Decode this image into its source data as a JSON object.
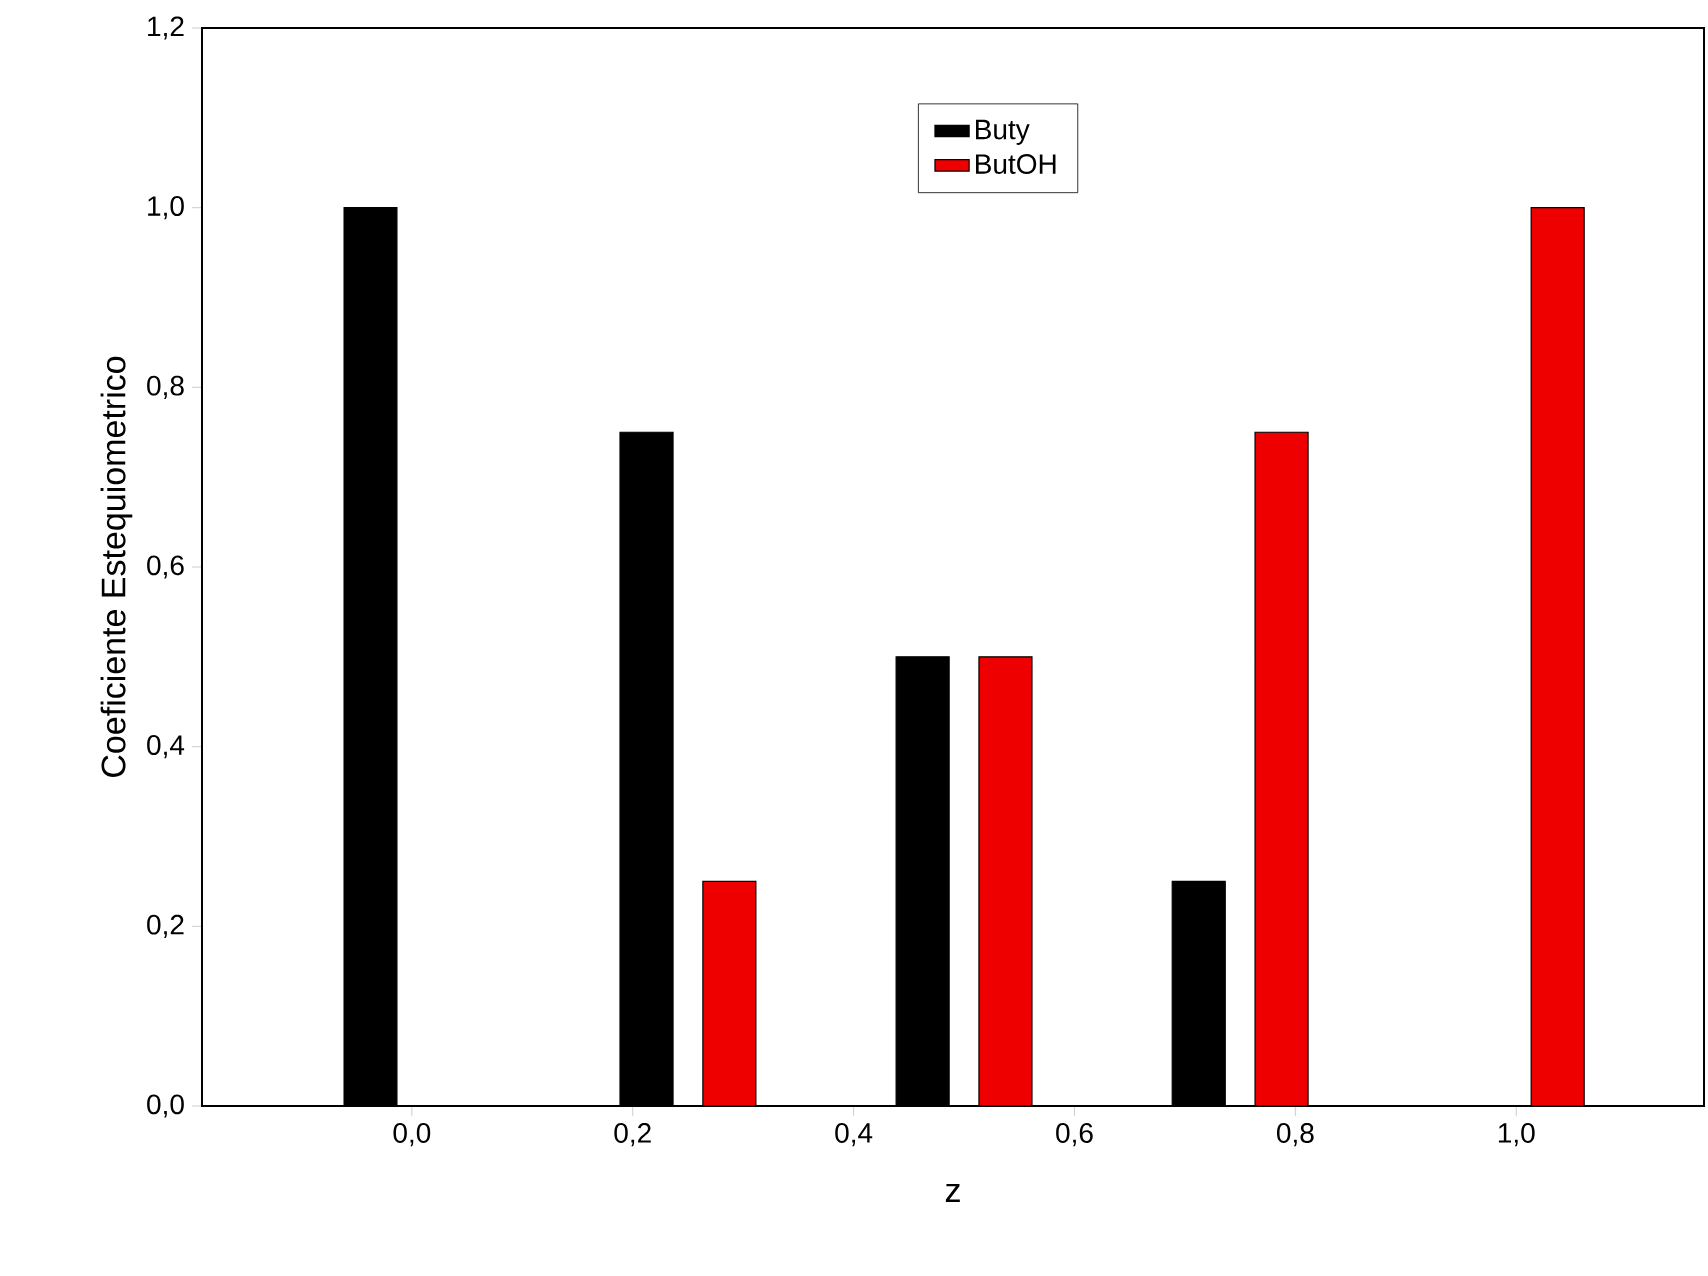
{
  "chart_data": {
    "type": "bar",
    "xlabel": "z",
    "ylabel": "Coeficiente Estequiometrico",
    "x": [
      0,
      0.25,
      0.5,
      0.75,
      1.0
    ],
    "series": [
      {
        "name": "Buty",
        "color": "#000000",
        "values": [
          1.0,
          0.75,
          0.5,
          0.25,
          null
        ]
      },
      {
        "name": "ButOH",
        "color": "#ee0000",
        "values": [
          null,
          0.25,
          0.5,
          0.75,
          1.0
        ]
      }
    ],
    "xlim": [
      -0.19,
      1.17
    ],
    "xticks": [
      {
        "value": 0,
        "label": "0,0"
      },
      {
        "value": 0.2,
        "label": "0,2"
      },
      {
        "value": 0.4,
        "label": "0,4"
      },
      {
        "value": 0.6,
        "label": "0,6"
      },
      {
        "value": 0.8,
        "label": "0,8"
      },
      {
        "value": 1.0,
        "label": "1,0"
      }
    ],
    "ylim": [
      0,
      1.2
    ],
    "yticks": [
      {
        "value": 0,
        "label": "0,0"
      },
      {
        "value": 0.2,
        "label": "0,2"
      },
      {
        "value": 0.4,
        "label": "0,4"
      },
      {
        "value": 0.6,
        "label": "0,6"
      },
      {
        "value": 0.8,
        "label": "0,8"
      },
      {
        "value": 1.0,
        "label": "1,0"
      },
      {
        "value": 1.2,
        "label": "1,2"
      }
    ],
    "legend": "top",
    "grid": false
  }
}
